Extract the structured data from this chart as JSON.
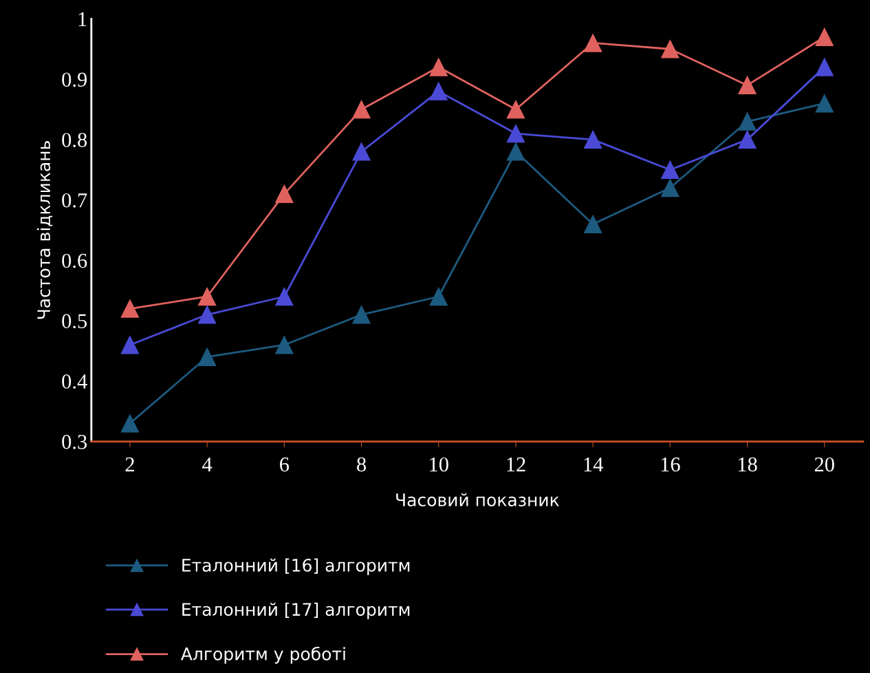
{
  "chart_data": {
    "type": "line",
    "xlabel": "Часовий показник",
    "ylabel": "Частота відкликань",
    "x": [
      2,
      4,
      6,
      8,
      10,
      12,
      14,
      16,
      18,
      20
    ],
    "series": [
      {
        "name": "Еталонний [16] алгоритм",
        "color": "#1d5a80",
        "values": [
          0.33,
          0.44,
          0.46,
          0.51,
          0.54,
          0.78,
          0.66,
          0.72,
          0.83,
          0.86
        ]
      },
      {
        "name": "Еталонний [17] алгоритм",
        "color": "#4a4ad6",
        "values": [
          0.46,
          0.51,
          0.54,
          0.78,
          0.88,
          0.81,
          0.8,
          0.75,
          0.8,
          0.92
        ]
      },
      {
        "name": "Алгоритм у роботі",
        "color": "#e0625f",
        "values": [
          0.52,
          0.54,
          0.71,
          0.85,
          0.92,
          0.85,
          0.96,
          0.95,
          0.89,
          0.97
        ]
      }
    ],
    "xlim": [
      1,
      21
    ],
    "xticks": [
      2,
      4,
      6,
      8,
      10,
      12,
      14,
      16,
      18,
      20
    ],
    "ylim": [
      0.3,
      1
    ],
    "yticks": [
      0.3,
      0.4,
      0.5,
      0.6,
      0.7,
      0.8,
      0.9,
      1
    ],
    "marker": "triangle",
    "line_style": "solid",
    "grid": false,
    "legend": "bottom left"
  }
}
